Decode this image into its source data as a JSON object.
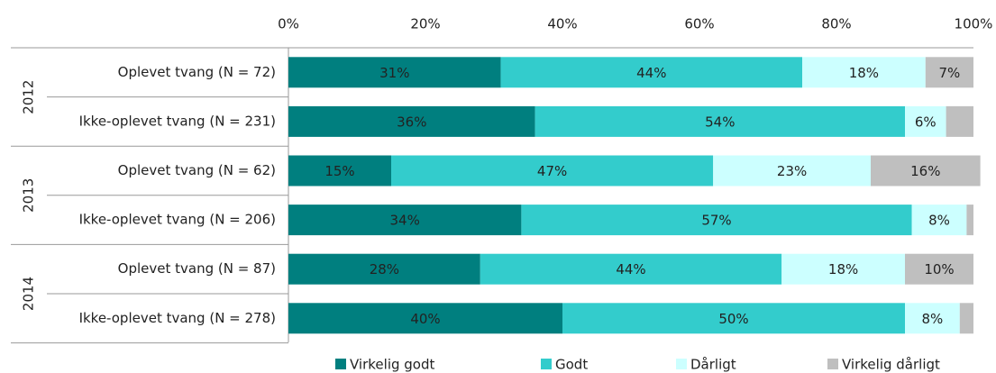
{
  "chart_data": {
    "type": "stacked_bar_horizontal",
    "categories": [
      "Oplevet tvang (N = 72)",
      "Ikke-oplevet tvang (N = 231)",
      "Oplevet tvang (N = 62)",
      "Ikke-oplevet tvang (N = 206)",
      "Oplevet tvang (N = 87)",
      "Ikke-oplevet tvang (N = 278)"
    ],
    "groups": [
      "2012",
      "2013",
      "2014"
    ],
    "series": [
      {
        "name": "Virkelig godt",
        "color": "#007f7f",
        "values": [
          31,
          36,
          15,
          34,
          28,
          40
        ],
        "value_labels": [
          "31%",
          "36%",
          "15%",
          "34%",
          "28%",
          "40%"
        ]
      },
      {
        "name": "Godt",
        "color": "#33cccc",
        "values": [
          44,
          54,
          47,
          57,
          44,
          50
        ],
        "value_labels": [
          "44%",
          "54%",
          "47%",
          "57%",
          "44%",
          "50%"
        ]
      },
      {
        "name": "Dårligt",
        "color": "#ccffff",
        "values": [
          18,
          6,
          23,
          8,
          18,
          8
        ],
        "value_labels": [
          "18%",
          "6%",
          "23%",
          "8%",
          "18%",
          "8%"
        ]
      },
      {
        "name": "Virkelig dårligt",
        "color": "#bfbfbf",
        "values": [
          7,
          4,
          16,
          1,
          10,
          2
        ],
        "value_labels": [
          "7%",
          null,
          "16%",
          null,
          "10%",
          null
        ]
      }
    ],
    "xlim": [
      0,
      100
    ],
    "xticks": [
      {
        "value": 0,
        "label": "0%"
      },
      {
        "value": 20,
        "label": "20%"
      },
      {
        "value": 40,
        "label": "40%"
      },
      {
        "value": 60,
        "label": "60%"
      },
      {
        "value": 80,
        "label": "80%"
      },
      {
        "value": 100,
        "label": "100%"
      }
    ]
  }
}
